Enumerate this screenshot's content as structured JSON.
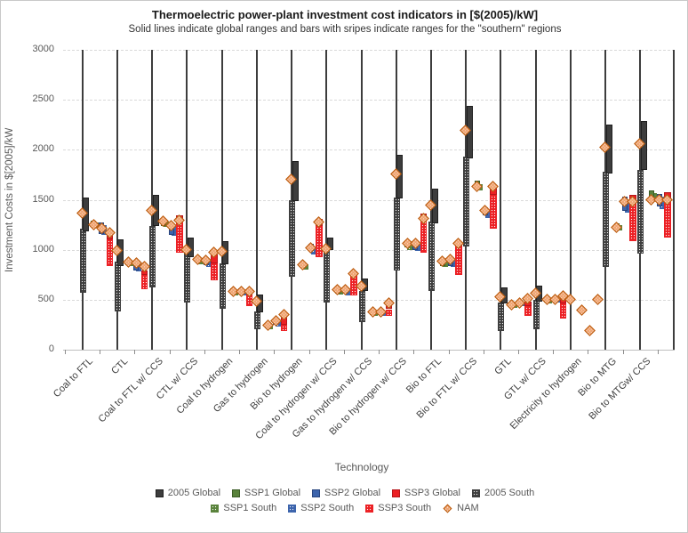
{
  "chart_data": {
    "type": "range_bar_with_markers",
    "title": "Thermoelectric power-plant investment cost indicators in [$(2005)/kW]",
    "subtitle": "Solid lines indicate global ranges and  bars with sripes indicate ranges for the \"southern\" regions",
    "xlabel": "Technology",
    "ylabel": "Investment  Costs in $[2005]/kW",
    "ylim": [
      0,
      3000
    ],
    "yticks": [
      0,
      500,
      1000,
      1500,
      2000,
      2500,
      3000
    ],
    "grid": "horizontal-dashed",
    "legend_position": "bottom",
    "categories": [
      "Coal to FTL",
      "CTL",
      "Coal to FTL w/ CCS",
      "CTL w/ CCS",
      "Coal to hydrogen",
      "Gas to hydrogen",
      "Bio to hydrogen",
      "Coal to hydrogen w/ CCS",
      "Gas to hydrogen w/ CCS",
      "Bio to hydrogen w/ CCS",
      "Bio to FTL",
      "Bio to FTL w/ CCS",
      "GTL",
      "GTL w/ CCS",
      "Electricity to hydrogen",
      "Bio to MTG",
      "Bio to MTGw/ CCS"
    ],
    "styles": {
      "g2005": {
        "color": "#3d3d3d",
        "border": "#1f1f1f",
        "hatch": false
      },
      "s2005": {
        "color": "#3d3d3d",
        "border": "#3d3d3d",
        "hatch": true
      },
      "ssp1g": {
        "color": "#59823b",
        "border": "#3c5c26",
        "hatch": false
      },
      "ssp1s": {
        "color": "#59823b",
        "border": "#59823b",
        "hatch": true
      },
      "ssp2g": {
        "color": "#3c64ac",
        "border": "#28457e",
        "hatch": false
      },
      "ssp2s": {
        "color": "#3c64ac",
        "border": "#3c64ac",
        "hatch": true
      },
      "ssp3g": {
        "color": "#ec2024",
        "border": "#b5161a",
        "hatch": false
      },
      "ssp3s": {
        "color": "#ec2024",
        "border": "#ec2024",
        "hatch": true
      },
      "nam": {
        "color": "#f0a471",
        "border": "#b65708",
        "hatch": true
      }
    },
    "legend_rows": [
      [
        {
          "label": "2005 Global",
          "style": "g2005",
          "shape": "square"
        },
        {
          "label": "SSP1 Global",
          "style": "ssp1g",
          "shape": "square"
        },
        {
          "label": "SSP2 Global",
          "style": "ssp2g",
          "shape": "square"
        },
        {
          "label": "SSP3 Global",
          "style": "ssp3g",
          "shape": "square"
        },
        {
          "label": "2005 South",
          "style": "s2005",
          "shape": "square"
        }
      ],
      [
        {
          "label": "SSP1 South",
          "style": "ssp1s",
          "shape": "square"
        },
        {
          "label": "SSP2 South",
          "style": "ssp2s",
          "shape": "square"
        },
        {
          "label": "SSP3 South",
          "style": "ssp3s",
          "shape": "square"
        },
        {
          "label": "NAM",
          "style": "nam",
          "shape": "diamond"
        }
      ]
    ],
    "ranges": {
      "g2005": [
        [
          1180,
          1520
        ],
        [
          840,
          1105
        ],
        [
          1235,
          1545
        ],
        [
          925,
          1120
        ],
        [
          855,
          1090
        ],
        [
          370,
          555
        ],
        [
          1490,
          1890
        ],
        [
          1000,
          1125
        ],
        [
          590,
          710
        ],
        [
          1515,
          1950
        ],
        [
          1265,
          1610
        ],
        [
          1910,
          2440
        ],
        [
          460,
          625
        ],
        [
          485,
          640
        ],
        null,
        [
          1765,
          2250
        ],
        [
          1795,
          2290
        ]
      ],
      "s2005": [
        [
          570,
          1210
        ],
        [
          385,
          885
        ],
        [
          620,
          1235
        ],
        [
          470,
          970
        ],
        [
          410,
          865
        ],
        [
          205,
          385
        ],
        [
          730,
          1500
        ],
        [
          470,
          1010
        ],
        [
          280,
          590
        ],
        [
          795,
          1520
        ],
        [
          590,
          1280
        ],
        [
          1030,
          1930
        ],
        [
          185,
          470
        ],
        [
          205,
          500
        ],
        null,
        [
          830,
          1780
        ],
        [
          960,
          1800
        ]
      ],
      "ssp1g": [
        [
          1240,
          1290
        ],
        [
          850,
          900
        ],
        [
          1240,
          1300
        ],
        [
          875,
          925
        ],
        [
          560,
          615
        ],
        [
          215,
          265
        ],
        [
          815,
          870
        ],
        [
          565,
          620
        ],
        [
          345,
          400
        ],
        [
          1020,
          1080
        ],
        [
          840,
          900
        ],
        [
          1620,
          1690
        ],
        [
          425,
          465
        ],
        [
          475,
          515
        ],
        null,
        [
          1205,
          1260
        ],
        [
          1525,
          1595
        ]
      ],
      "ssp1s": [
        [
          1220,
          1270
        ],
        [
          835,
          885
        ],
        [
          1225,
          1280
        ],
        [
          855,
          905
        ],
        [
          545,
          600
        ],
        [
          205,
          250
        ],
        [
          800,
          855
        ],
        [
          550,
          605
        ],
        [
          335,
          385
        ],
        [
          1000,
          1060
        ],
        [
          825,
          885
        ],
        [
          1590,
          1660
        ],
        [
          415,
          455
        ],
        [
          465,
          505
        ],
        null,
        [
          1190,
          1245
        ],
        [
          1505,
          1570
        ]
      ],
      "ssp2g": [
        [
          1160,
          1270
        ],
        [
          795,
          880
        ],
        [
          1150,
          1250
        ],
        [
          845,
          910
        ],
        [
          555,
          615
        ],
        [
          245,
          310
        ],
        [
          985,
          1060
        ],
        [
          560,
          625
        ],
        [
          345,
          400
        ],
        [
          1000,
          1090
        ],
        [
          840,
          920
        ],
        [
          1340,
          1425
        ],
        [
          445,
          485
        ],
        [
          480,
          520
        ],
        null,
        [
          1385,
          1530
        ],
        [
          1435,
          1560
        ]
      ],
      "ssp2s": [
        [
          1145,
          1250
        ],
        [
          780,
          865
        ],
        [
          1140,
          1240
        ],
        [
          825,
          890
        ],
        [
          540,
          600
        ],
        [
          235,
          295
        ],
        [
          955,
          1030
        ],
        [
          545,
          610
        ],
        [
          335,
          385
        ],
        [
          985,
          1065
        ],
        [
          825,
          900
        ],
        [
          1320,
          1400
        ],
        [
          435,
          475
        ],
        [
          470,
          510
        ],
        null,
        [
          1370,
          1500
        ],
        [
          1410,
          1530
        ]
      ],
      "ssp3g": [
        [
          1100,
          1170
        ],
        [
          745,
          795
        ],
        [
          1270,
          1340
        ],
        [
          860,
          955
        ],
        [
          545,
          605
        ],
        [
          250,
          370
        ],
        [
          1240,
          1310
        ],
        [
          735,
          780
        ],
        [
          405,
          450
        ],
        [
          1290,
          1360
        ],
        [
          1030,
          1065
        ],
        [
          1550,
          1625
        ],
        [
          440,
          485
        ],
        [
          465,
          515
        ],
        null,
        [
          1460,
          1545
        ],
        [
          1490,
          1575
        ]
      ],
      "ssp3s": [
        [
          840,
          1100
        ],
        [
          605,
          745
        ],
        [
          970,
          1270
        ],
        [
          690,
          860
        ],
        [
          440,
          545
        ],
        [
          190,
          250
        ],
        [
          930,
          1240
        ],
        [
          545,
          735
        ],
        [
          340,
          405
        ],
        [
          970,
          1290
        ],
        [
          750,
          1030
        ],
        [
          1210,
          1550
        ],
        [
          340,
          440
        ],
        [
          310,
          465
        ],
        null,
        [
          1090,
          1460
        ],
        [
          1120,
          1490
        ]
      ]
    },
    "nam_markers": {
      "scenario_order": [
        "2005",
        "SSP1",
        "SSP2",
        "SSP3"
      ],
      "values": [
        [
          1360,
          1250,
          1215,
          1170
        ],
        [
          985,
          875,
          860,
          825
        ],
        [
          1385,
          1280,
          1235,
          1295
        ],
        [
          1000,
          900,
          890,
          970
        ],
        [
          980,
          580,
          580,
          580
        ],
        [
          485,
          240,
          285,
          345
        ],
        [
          1700,
          850,
          1015,
          1275
        ],
        [
          1010,
          600,
          600,
          760
        ],
        [
          630,
          375,
          375,
          465
        ],
        [
          1750,
          1060,
          1060,
          1310
        ],
        [
          1440,
          880,
          895,
          1060
        ],
        [
          2190,
          1625,
          1390,
          1630
        ],
        [
          525,
          445,
          465,
          505
        ],
        [
          560,
          495,
          500,
          535
        ],
        [
          495,
          395,
          185,
          495
        ],
        [
          2020,
          1220,
          1475,
          1475
        ],
        [
          2055,
          1495,
          1495,
          1500
        ]
      ]
    },
    "colors": {
      "grid": "#d9d9d9",
      "axis": "#bfbfbf",
      "category_line": "#3d3d3d",
      "text": "#595959"
    }
  }
}
